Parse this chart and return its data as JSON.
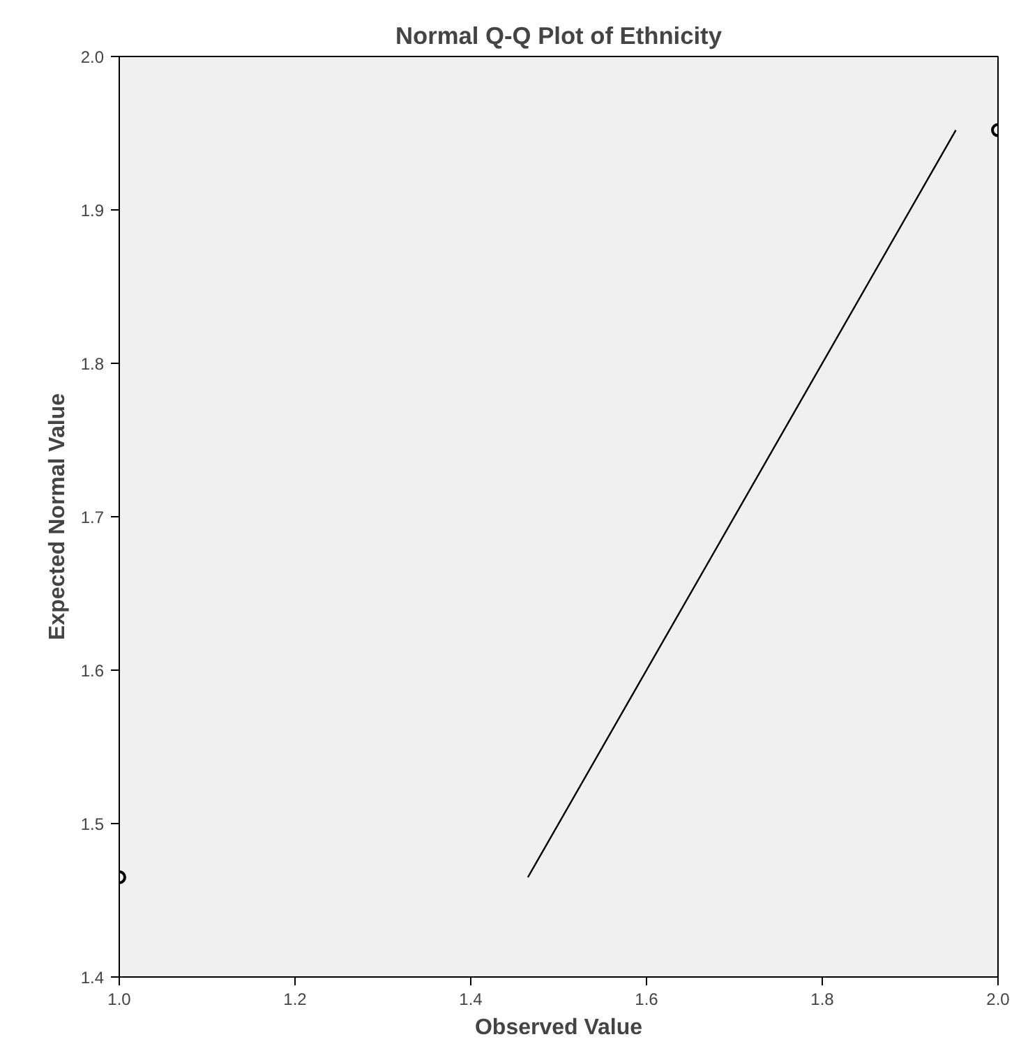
{
  "chart_data": {
    "type": "scatter",
    "title": "Normal Q-Q Plot of Ethnicity",
    "xlabel": "Observed Value",
    "ylabel": "Expected Normal Value",
    "x": [
      1.0,
      2.0
    ],
    "series": [
      {
        "color": "#000000",
        "values": [
          1.465,
          1.952
        ],
        "marker": "circle"
      },
      {
        "type": "line",
        "color": "#000000",
        "x": [
          1.465,
          1.952
        ],
        "values": [
          1.465,
          1.952
        ],
        "marker": "none"
      }
    ],
    "xlim": [
      1.0,
      2.0
    ],
    "ylim": [
      1.4,
      2.0
    ],
    "xticks": [
      {
        "value": 1.0,
        "label": "1.0"
      },
      1.2,
      1.4,
      1.6,
      1.8,
      {
        "value": 2.0,
        "label": "2.0"
      }
    ],
    "yticks": [
      {
        "value": 1.4,
        "label": "1.4"
      },
      1.5,
      1.6,
      1.7,
      1.8,
      1.9,
      {
        "value": 2.0,
        "label": "2.0"
      }
    ],
    "grid": false
  }
}
